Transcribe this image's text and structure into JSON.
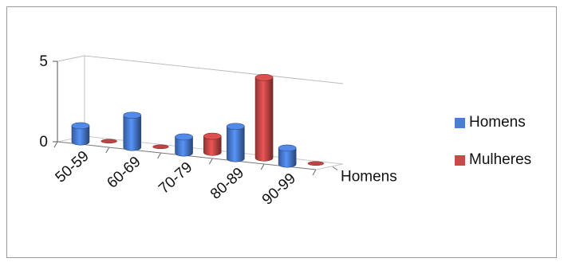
{
  "chart_data": {
    "type": "bar",
    "subtype": "3d-cylinder",
    "categories": [
      "50-59",
      "60-69",
      "70-79",
      "80-89",
      "90-99"
    ],
    "series": [
      {
        "name": "Homens",
        "color": "#4a7dd4",
        "values": [
          1,
          2,
          1,
          2,
          1
        ]
      },
      {
        "name": "Mulheres",
        "color": "#c94848",
        "values": [
          0,
          0,
          1,
          5,
          0
        ]
      }
    ],
    "depth_axis_label": "Homens",
    "y_ticks": [
      0,
      5
    ],
    "ylim": [
      0,
      5
    ],
    "legend_position": "right",
    "grid": true
  }
}
